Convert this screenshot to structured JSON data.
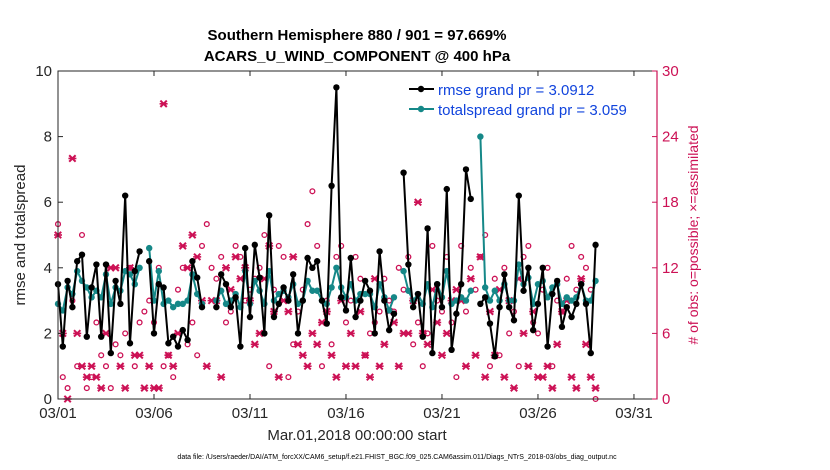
{
  "chart_data": {
    "type": "line",
    "title_line1": "Southern Hemisphere 880 / 901 = 97.669%",
    "title_line2": "ACARS_U_WIND_COMPONENT @ 400 hPa",
    "xlabel": "Mar.01,2018 00:00:00 start",
    "ylabel_left": "rmse and totalspread",
    "ylabel_right": "# of obs: o=possible; ×=assimilated",
    "footer": "data file: /Users/raeder/DAI/ATM_forcXX/CAM6_setup/f.e21.FHIST_BGC.f09_025.CAM6assim.011/Diags_NTrS_2018-03/obs_diag_output.nc",
    "xlim": [
      0,
      31.2
    ],
    "ylim_left": [
      0,
      10
    ],
    "ylim_right": [
      0,
      30
    ],
    "x_ticks": [
      0,
      5,
      10,
      15,
      20,
      25,
      30
    ],
    "x_tick_labels": [
      "03/01",
      "03/06",
      "03/11",
      "03/16",
      "03/21",
      "03/26",
      "03/31"
    ],
    "y_left_ticks": [
      0,
      2,
      4,
      6,
      8,
      10
    ],
    "y_left_tick_labels": [
      "0",
      "2",
      "4",
      "6",
      "8",
      "10"
    ],
    "y_right_ticks": [
      0,
      6,
      12,
      18,
      24,
      30
    ],
    "y_right_tick_labels": [
      "0",
      "6",
      "12",
      "18",
      "24",
      "30"
    ],
    "legend": [
      "rmse grand pr = 3.0912",
      "totalspread grand pr = 3.059"
    ],
    "colors": {
      "rmse": "#000000",
      "spread": "#158888",
      "obs": "#cc1155",
      "legend_text": "#1144dd",
      "right_axis": "#cc1155"
    },
    "series": [
      {
        "name": "rmse",
        "values": [
          3.5,
          1.6,
          3.6,
          2.8,
          4.2,
          4.4,
          1.9,
          3.4,
          4.1,
          1.9,
          4.1,
          1.4,
          3.6,
          2.9,
          6.2,
          1.7,
          3.9,
          4.5,
          null,
          4.2,
          2.0,
          3.5,
          3.4,
          1.7,
          1.9,
          1.6,
          2.1,
          1.8,
          4.2,
          3.7,
          2.8,
          null,
          null,
          2.8,
          3.8,
          3.5,
          2.8,
          3.1,
          1.6,
          4.6,
          2.5,
          4.7,
          3.7,
          2.0,
          5.6,
          2.5,
          2.9,
          3.4,
          3.0,
          3.8,
          2.0,
          3.0,
          4.3,
          4.0,
          4.2,
          3.0,
          2.3,
          6.5,
          9.5,
          3.1,
          2.7,
          4.3,
          2.5,
          3.0,
          3.6,
          3.3,
          2.0,
          4.5,
          3.0,
          2.1,
          2.6,
          null,
          6.9,
          4.1,
          2.8,
          3.2,
          1.9,
          5.2,
          1.4,
          3.5,
          2.8,
          6.4,
          1.5,
          2.6,
          3.5,
          7.0,
          6.1,
          null,
          2.9,
          3.1,
          2.3,
          1.3,
          2.8,
          3.8,
          2.8,
          2.4,
          6.2,
          3.3,
          4.0,
          2.1,
          2.9,
          4.0,
          1.6,
          3.2,
          3.6,
          2.2,
          2.8,
          2.5,
          2.9,
          3.5,
          2.9,
          1.4,
          4.7
        ]
      },
      {
        "name": "spread",
        "values": [
          2.9,
          2.7,
          3.4,
          3.2,
          3.9,
          3.6,
          3.4,
          3.1,
          3.3,
          3.1,
          3.8,
          2.9,
          3.4,
          3.3,
          3.9,
          3.8,
          3.5,
          4.0,
          null,
          4.6,
          3.0,
          3.9,
          2.9,
          3.0,
          2.8,
          2.9,
          2.9,
          3.0,
          3.8,
          3.2,
          2.9,
          null,
          null,
          3.0,
          3.3,
          2.9,
          3.0,
          3.2,
          2.8,
          3.9,
          2.9,
          3.6,
          3.3,
          2.9,
          3.9,
          3.0,
          3.2,
          3.3,
          3.1,
          3.5,
          2.9,
          3.0,
          3.6,
          3.3,
          3.3,
          3.0,
          2.9,
          3.4,
          4.0,
          3.4,
          3.1,
          3.5,
          3.0,
          3.2,
          3.2,
          3.2,
          2.8,
          3.5,
          3.1,
          2.7,
          3.1,
          null,
          3.9,
          3.3,
          3.0,
          3.2,
          2.9,
          3.5,
          2.8,
          3.5,
          3.1,
          3.9,
          2.9,
          3.0,
          3.1,
          3.0,
          3.3,
          null,
          8.0,
          3.4,
          3.0,
          3.3,
          3.0,
          3.5,
          3.0,
          3.0,
          4.1,
          3.5,
          3.7,
          2.9,
          3.5,
          3.6,
          3.1,
          3.4,
          3.5,
          2.9,
          3.1,
          3.0,
          3.1,
          3.5,
          3.0,
          3.0,
          3.6
        ]
      },
      {
        "name": "obs_possible",
        "values": [
          16,
          2,
          1,
          9,
          3,
          15,
          1,
          2,
          7,
          4,
          3,
          1,
          5,
          4,
          6,
          12,
          3,
          7,
          8,
          9,
          7,
          12,
          3,
          4,
          2,
          10,
          12,
          5,
          7,
          4,
          14,
          16,
          12,
          11,
          13,
          7,
          8,
          14,
          13,
          9,
          10,
          11,
          12,
          15,
          3,
          10,
          14,
          13,
          2,
          5,
          8,
          10,
          16,
          19,
          14,
          3,
          9,
          5,
          13,
          14,
          7,
          9,
          13,
          11,
          4,
          6,
          7,
          8,
          11,
          9,
          8,
          12,
          10,
          13,
          5,
          7,
          3,
          6,
          14,
          9,
          8,
          13,
          7,
          2,
          14,
          8,
          12,
          10,
          13,
          15,
          3,
          11,
          4,
          12,
          6,
          8,
          3,
          13,
          14,
          7,
          6,
          10,
          12,
          3,
          9,
          8,
          11,
          14,
          10,
          13,
          12,
          10,
          0
        ]
      },
      {
        "name": "obs_assimilated",
        "values": [
          15,
          6,
          0,
          22,
          6,
          3,
          2,
          3,
          2,
          1,
          6,
          12,
          12,
          3,
          1,
          12,
          4,
          4,
          1,
          3,
          1,
          1,
          27,
          4,
          3,
          6,
          14,
          12,
          15,
          13,
          9,
          3,
          9,
          9,
          2,
          12,
          10,
          13,
          11,
          12,
          9,
          5,
          6,
          11,
          14,
          8,
          2,
          9,
          8,
          13,
          5,
          4,
          3,
          6,
          5,
          7,
          8,
          4,
          2,
          9,
          3,
          6,
          3,
          8,
          4,
          2,
          11,
          3,
          5,
          8,
          7,
          3,
          6,
          6,
          9,
          18,
          6,
          5,
          10,
          7,
          4,
          6,
          9,
          10,
          9,
          3,
          11,
          4,
          13,
          2,
          8,
          4,
          10,
          2,
          9,
          1,
          11,
          6,
          3,
          8,
          2,
          2,
          3,
          1,
          5,
          8,
          9,
          2,
          1,
          11,
          5,
          2,
          1
        ]
      }
    ]
  }
}
